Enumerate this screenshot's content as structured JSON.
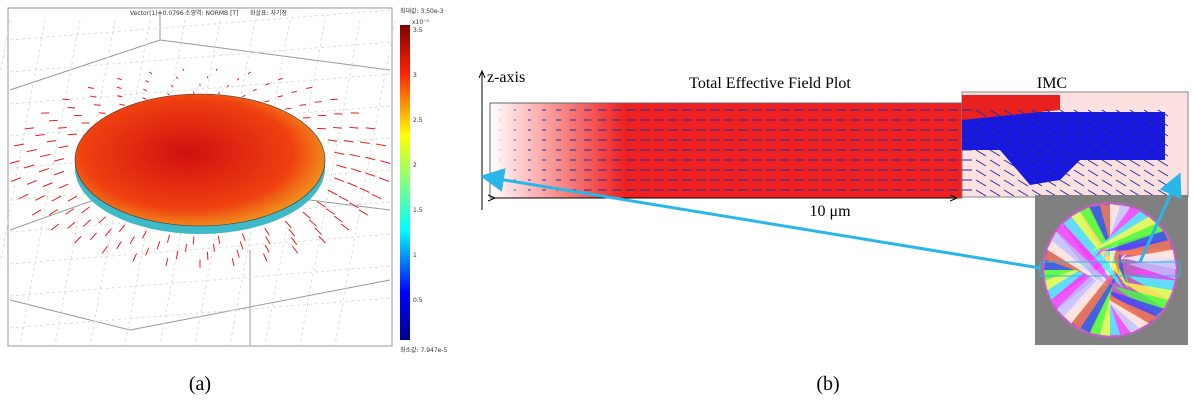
{
  "panel_a": {
    "header": [
      "Vector(1)=0.0796",
      "소영역: NORMB [T]",
      "화살표: 자기장"
    ],
    "colorbar": {
      "max_label": "최대값: 3.50e-3",
      "exponent": "x10⁻³",
      "ticks": [
        "3.5",
        "3",
        "2.5",
        "2",
        "1.5",
        "1",
        "0.5"
      ],
      "min_label": "최소값: 7.947e-5"
    },
    "caption": "(a)"
  },
  "panel_b": {
    "axis_label": "z-axis",
    "title": "Total Effective Field Plot",
    "imc_label": "IMC",
    "scale_label": "10 μm",
    "caption": "(b)"
  }
}
